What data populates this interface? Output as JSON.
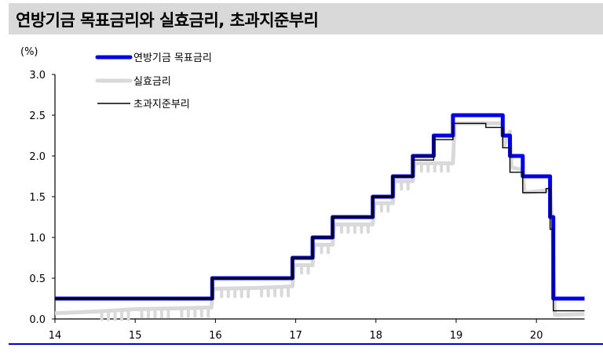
{
  "title": "연방기금 목표금리와 실효금리, 초과지준부리",
  "colors": {
    "fed_target": "#0000e6",
    "fed_target_dark": "#00008b",
    "effective": "#d9d9d9",
    "ioer": "#000000",
    "title_bg": "#d9d9d9",
    "bottom_rule": "#0000c0"
  },
  "chart_data": {
    "type": "line",
    "title": "연방기금 목표금리와 실효금리, 초과지준부리",
    "ylabel": "(%)",
    "xlabel": "",
    "ylim": [
      0.0,
      3.0
    ],
    "xlim": [
      14,
      20.6
    ],
    "yticks": [
      "0.0",
      "0.5",
      "1.0",
      "1.5",
      "2.0",
      "2.5",
      "3.0"
    ],
    "xticks": [
      "14",
      "15",
      "16",
      "17",
      "18",
      "19",
      "20"
    ],
    "grid": false,
    "legend_position": "top-left",
    "legend": [
      "연방기금 목표금리",
      "실효금리",
      "초과지준부리"
    ],
    "series": [
      {
        "name": "연방기금 목표금리",
        "style": "thick blue step",
        "x": [
          14.0,
          15.96,
          15.96,
          16.96,
          16.96,
          17.21,
          17.21,
          17.46,
          17.46,
          17.96,
          17.96,
          18.21,
          18.21,
          18.46,
          18.46,
          18.72,
          18.72,
          18.96,
          18.96,
          19.58,
          19.58,
          19.67,
          19.67,
          19.83,
          19.83,
          20.17,
          20.17,
          20.21,
          20.21,
          20.6
        ],
        "values": [
          0.25,
          0.25,
          0.5,
          0.5,
          0.75,
          0.75,
          1.0,
          1.0,
          1.25,
          1.25,
          1.5,
          1.5,
          1.75,
          1.75,
          2.0,
          2.0,
          2.25,
          2.25,
          2.5,
          2.5,
          2.25,
          2.25,
          2.0,
          2.0,
          1.75,
          1.75,
          1.25,
          1.25,
          0.25,
          0.25
        ]
      },
      {
        "name": "실효금리",
        "style": "thick light gray, noisy",
        "x": [
          14.0,
          14.5,
          15.0,
          15.5,
          15.95,
          15.97,
          16.5,
          16.96,
          16.98,
          17.21,
          17.23,
          17.46,
          17.48,
          17.96,
          17.98,
          18.21,
          18.23,
          18.46,
          18.48,
          18.96,
          18.98,
          19.58,
          19.6,
          19.67,
          19.69,
          19.83,
          19.85,
          20.17,
          20.2,
          20.23,
          20.6
        ],
        "values": [
          0.07,
          0.09,
          0.12,
          0.13,
          0.14,
          0.37,
          0.38,
          0.4,
          0.66,
          0.66,
          0.91,
          0.91,
          1.16,
          1.16,
          1.42,
          1.42,
          1.69,
          1.69,
          1.91,
          1.91,
          2.4,
          2.4,
          2.13,
          2.3,
          1.86,
          1.83,
          1.55,
          1.58,
          1.1,
          0.05,
          0.06
        ]
      },
      {
        "name": "초과지준부리",
        "style": "thin black step",
        "x": [
          14.0,
          15.96,
          15.96,
          16.96,
          16.96,
          17.21,
          17.21,
          17.46,
          17.46,
          17.96,
          17.96,
          18.21,
          18.21,
          18.46,
          18.46,
          18.72,
          18.72,
          18.96,
          18.96,
          19.37,
          19.37,
          19.58,
          19.58,
          19.67,
          19.67,
          19.83,
          19.83,
          20.12,
          20.12,
          20.17,
          20.17,
          20.21,
          20.21,
          20.6
        ],
        "values": [
          0.25,
          0.25,
          0.5,
          0.5,
          0.75,
          0.75,
          1.0,
          1.0,
          1.25,
          1.25,
          1.5,
          1.5,
          1.75,
          1.75,
          1.95,
          1.95,
          2.2,
          2.2,
          2.4,
          2.4,
          2.35,
          2.35,
          2.1,
          2.1,
          1.8,
          1.8,
          1.55,
          1.55,
          1.6,
          1.6,
          1.1,
          1.1,
          0.1,
          0.1
        ]
      }
    ]
  }
}
